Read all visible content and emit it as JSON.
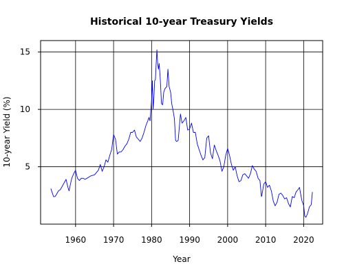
{
  "chart_data": {
    "type": "line",
    "title": "Historical 10-year Treasury Yields",
    "xlabel": "Year",
    "ylabel": "10-year Yield (%)",
    "xlim": [
      1950.8,
      2025.0
    ],
    "ylim": [
      0.0,
      16.0
    ],
    "xticks": [
      1960,
      1970,
      1980,
      1990,
      2000,
      2010,
      2020
    ],
    "yticks": [
      5,
      10,
      15
    ],
    "grid": true,
    "series": [
      {
        "color": "#0000ff",
        "x": [
          1953.5,
          1953.8,
          1954.2,
          1954.6,
          1955.0,
          1955.5,
          1956.0,
          1956.5,
          1957.0,
          1957.5,
          1958.0,
          1958.3,
          1958.6,
          1959.0,
          1959.5,
          1960.0,
          1960.5,
          1961.0,
          1961.5,
          1962.0,
          1962.5,
          1963.0,
          1964.0,
          1965.0,
          1966.0,
          1966.5,
          1967.0,
          1967.5,
          1968.0,
          1968.5,
          1969.0,
          1969.5,
          1970.0,
          1970.5,
          1971.0,
          1971.5,
          1972.0,
          1972.5,
          1973.0,
          1973.5,
          1974.0,
          1974.5,
          1975.0,
          1975.5,
          1976.0,
          1976.5,
          1977.0,
          1977.5,
          1978.0,
          1978.5,
          1979.0,
          1979.3,
          1979.6,
          1980.0,
          1980.2,
          1980.4,
          1980.6,
          1980.8,
          1981.0,
          1981.2,
          1981.4,
          1981.6,
          1981.8,
          1982.0,
          1982.3,
          1982.6,
          1982.9,
          1983.2,
          1983.5,
          1984.0,
          1984.3,
          1984.6,
          1985.0,
          1985.3,
          1985.6,
          1986.0,
          1986.3,
          1986.6,
          1987.0,
          1987.3,
          1987.6,
          1988.0,
          1988.5,
          1989.0,
          1989.5,
          1990.0,
          1990.5,
          1991.0,
          1991.5,
          1992.0,
          1992.5,
          1993.0,
          1993.5,
          1994.0,
          1994.5,
          1995.0,
          1995.5,
          1996.0,
          1996.5,
          1997.0,
          1997.5,
          1998.0,
          1998.5,
          1999.0,
          1999.5,
          2000.0,
          2000.5,
          2001.0,
          2001.5,
          2002.0,
          2002.5,
          2003.0,
          2003.5,
          2004.0,
          2004.5,
          2005.0,
          2005.5,
          2006.0,
          2006.5,
          2007.0,
          2007.5,
          2008.0,
          2008.5,
          2008.9,
          2009.0,
          2009.5,
          2010.0,
          2010.5,
          2011.0,
          2011.5,
          2012.0,
          2012.5,
          2013.0,
          2013.5,
          2014.0,
          2014.5,
          2015.0,
          2015.5,
          2016.0,
          2016.5,
          2017.0,
          2017.5,
          2018.0,
          2018.5,
          2018.9,
          2019.5,
          2020.0,
          2020.3,
          2020.6,
          2021.0,
          2021.5,
          2022.0,
          2022.3
        ],
        "y": [
          3.1,
          2.8,
          2.4,
          2.4,
          2.6,
          2.9,
          3.0,
          3.3,
          3.6,
          3.9,
          3.2,
          2.9,
          3.4,
          4.0,
          4.4,
          4.7,
          4.0,
          3.8,
          4.0,
          4.0,
          3.9,
          4.0,
          4.2,
          4.3,
          4.7,
          5.2,
          4.6,
          5.0,
          5.6,
          5.4,
          6.0,
          6.5,
          7.8,
          7.4,
          6.1,
          6.3,
          6.3,
          6.5,
          6.8,
          7.0,
          7.4,
          8.0,
          8.0,
          8.2,
          7.6,
          7.4,
          7.2,
          7.5,
          8.0,
          8.6,
          9.0,
          9.3,
          9.0,
          10.8,
          12.5,
          10.0,
          11.0,
          12.5,
          12.6,
          14.0,
          15.2,
          14.0,
          13.5,
          14.0,
          12.5,
          10.5,
          10.4,
          11.5,
          11.8,
          12.0,
          13.5,
          12.0,
          11.5,
          10.5,
          10.0,
          9.2,
          7.3,
          7.2,
          7.3,
          8.5,
          9.6,
          8.8,
          9.0,
          9.3,
          8.2,
          8.3,
          8.8,
          8.0,
          8.0,
          7.0,
          6.5,
          6.0,
          5.6,
          5.8,
          7.5,
          7.7,
          6.2,
          5.7,
          6.9,
          6.4,
          6.0,
          5.5,
          4.6,
          5.0,
          6.0,
          6.6,
          6.0,
          5.2,
          4.7,
          5.0,
          4.2,
          3.7,
          3.8,
          4.3,
          4.4,
          4.2,
          4.0,
          4.4,
          5.1,
          4.8,
          4.6,
          4.0,
          3.8,
          2.4,
          2.5,
          3.5,
          3.7,
          3.2,
          3.4,
          2.9,
          2.0,
          1.6,
          1.9,
          2.6,
          2.7,
          2.5,
          2.2,
          2.3,
          1.8,
          1.5,
          2.4,
          2.3,
          2.8,
          3.0,
          3.2,
          2.1,
          1.6,
          0.7,
          0.6,
          0.9,
          1.5,
          1.7,
          2.8
        ]
      }
    ]
  }
}
